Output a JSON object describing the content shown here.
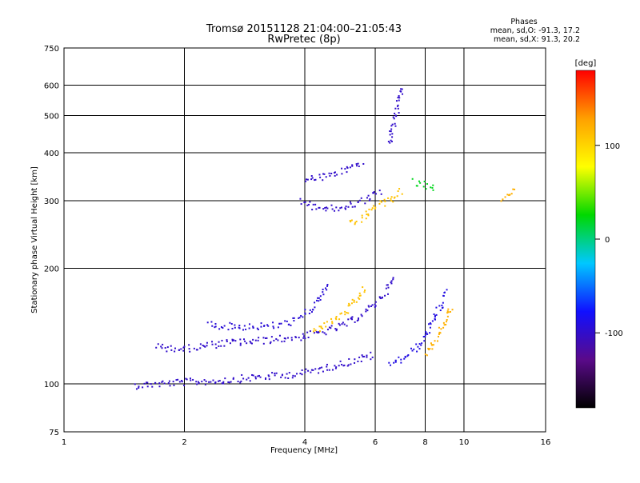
{
  "chart_data": {
    "type": "scatter",
    "title": "Tromsø 20151128 21:04:00–21:05:43",
    "subtitle": "RwPretec (8p)",
    "xlabel": "Frequency [MHz]",
    "ylabel": "Stationary phase Virtual Height [km]",
    "xscale": "log",
    "yscale": "log",
    "xlim": [
      1,
      16
    ],
    "ylim": [
      75,
      750
    ],
    "x_ticks": [
      1,
      2,
      4,
      6,
      8,
      10,
      16
    ],
    "y_ticks": [
      75,
      100,
      200,
      300,
      400,
      500,
      600,
      750
    ],
    "grid": true,
    "phase_stats": {
      "heading": "Phases",
      "line1": "mean, sd,O:  -91.3, 17.2",
      "line2": "mean, sd,X:  91.3, 20.2"
    },
    "colorbar": {
      "label": "[deg]",
      "range": [
        -180,
        180
      ],
      "ticks": [
        100,
        0,
        -100
      ],
      "colormap": [
        "#000000",
        "#5a0a8a",
        "#1010ff",
        "#00c8ff",
        "#00d800",
        "#ffff00",
        "#ffa000",
        "#ff0000"
      ]
    },
    "traces": [
      {
        "kind": "O",
        "phase": -100,
        "points": [
          [
            1.5,
            99
          ],
          [
            1.7,
            100
          ],
          [
            2.0,
            101
          ],
          [
            2.5,
            102
          ],
          [
            3.0,
            104
          ],
          [
            3.5,
            105
          ],
          [
            4.0,
            107
          ],
          [
            4.5,
            110
          ],
          [
            5.0,
            113
          ],
          [
            5.5,
            116
          ],
          [
            6.0,
            119
          ]
        ]
      },
      {
        "kind": "O",
        "phase": -100,
        "points": [
          [
            1.7,
            125
          ],
          [
            2.0,
            123
          ],
          [
            2.3,
            126
          ],
          [
            2.6,
            128
          ],
          [
            3.0,
            129
          ],
          [
            3.5,
            131
          ],
          [
            4.0,
            133
          ],
          [
            4.5,
            137
          ],
          [
            5.0,
            142
          ],
          [
            5.5,
            150
          ],
          [
            6.0,
            162
          ],
          [
            6.4,
            175
          ],
          [
            6.7,
            190
          ]
        ]
      },
      {
        "kind": "O",
        "phase": -95,
        "points": [
          [
            2.3,
            143
          ],
          [
            2.6,
            141
          ],
          [
            3.0,
            141
          ],
          [
            3.4,
            142
          ],
          [
            3.8,
            146
          ],
          [
            4.1,
            155
          ],
          [
            4.4,
            168
          ],
          [
            4.6,
            182
          ]
        ]
      },
      {
        "kind": "X",
        "phase": 110,
        "points": [
          [
            4.2,
            137
          ],
          [
            4.6,
            144
          ],
          [
            5.0,
            152
          ],
          [
            5.4,
            165
          ],
          [
            5.7,
            178
          ]
        ]
      },
      {
        "kind": "O",
        "phase": -90,
        "points": [
          [
            6.5,
            112
          ],
          [
            7.0,
            116
          ],
          [
            7.5,
            122
          ],
          [
            7.9,
            130
          ],
          [
            8.3,
            142
          ],
          [
            8.7,
            158
          ],
          [
            9.0,
            175
          ]
        ]
      },
      {
        "kind": "X",
        "phase": 120,
        "points": [
          [
            8.0,
            120
          ],
          [
            8.5,
            130
          ],
          [
            9.0,
            145
          ],
          [
            9.3,
            160
          ]
        ]
      },
      {
        "kind": "O",
        "phase": -100,
        "points": [
          [
            3.9,
            300
          ],
          [
            4.2,
            290
          ],
          [
            4.6,
            285
          ],
          [
            5.0,
            288
          ],
          [
            5.4,
            295
          ],
          [
            5.8,
            305
          ],
          [
            6.2,
            320
          ]
        ]
      },
      {
        "kind": "O",
        "phase": -100,
        "points": [
          [
            4.0,
            340
          ],
          [
            4.4,
            345
          ],
          [
            4.8,
            355
          ],
          [
            5.2,
            365
          ],
          [
            5.6,
            380
          ]
        ]
      },
      {
        "kind": "X",
        "phase": 110,
        "points": [
          [
            5.2,
            260
          ],
          [
            5.6,
            270
          ],
          [
            6.0,
            290
          ],
          [
            6.5,
            300
          ],
          [
            7.0,
            320
          ]
        ]
      },
      {
        "kind": "O",
        "phase": -100,
        "points": [
          [
            6.5,
            420
          ],
          [
            6.7,
            480
          ],
          [
            6.9,
            550
          ],
          [
            7.0,
            600
          ]
        ]
      },
      {
        "kind": "X",
        "phase": 20,
        "points": [
          [
            7.5,
            335
          ],
          [
            8.0,
            330
          ],
          [
            8.5,
            325
          ]
        ]
      },
      {
        "kind": "X",
        "phase": 120,
        "points": [
          [
            12.5,
            300
          ],
          [
            13.0,
            310
          ],
          [
            13.5,
            320
          ]
        ]
      }
    ]
  }
}
